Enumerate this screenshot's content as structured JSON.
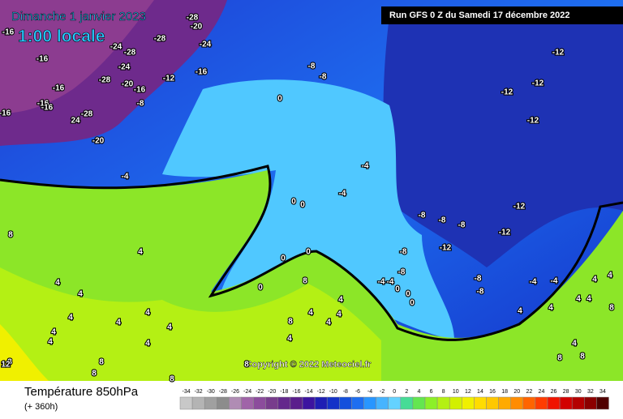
{
  "header": {
    "date": "Dimanche 1 janvier 2023",
    "time": "1:00 locale",
    "run": "Run GFS 0 Z du Samedi 17 décembre 2022",
    "copyright": "Copyright © 2022 Meteociel.fr"
  },
  "footer": {
    "title": "Température 850hPa",
    "subtitle": "(+ 360h)"
  },
  "legend": {
    "ticks": [
      -34,
      -32,
      -30,
      -28,
      -26,
      -24,
      -22,
      -20,
      -18,
      -16,
      -14,
      -12,
      -10,
      -8,
      -6,
      -4,
      -2,
      0,
      2,
      4,
      6,
      8,
      10,
      12,
      14,
      16,
      18,
      20,
      22,
      24,
      26,
      28,
      30,
      32,
      34
    ],
    "colors": [
      "#c8c8c8",
      "#b4b4b4",
      "#a0a0a0",
      "#8c8c8c",
      "#b08cb4",
      "#a064a8",
      "#8c4c9c",
      "#783c8c",
      "#64288c",
      "#5a1e8c",
      "#3c14a0",
      "#1e1eb4",
      "#1432c8",
      "#1450dc",
      "#1e6ef0",
      "#2896ff",
      "#46b4ff",
      "#64d2ff",
      "#46dc96",
      "#64e650",
      "#8cf028",
      "#b4f014",
      "#d2f000",
      "#f0f000",
      "#ffdc00",
      "#ffc800",
      "#ffaa00",
      "#ff8c00",
      "#ff6400",
      "#ff3c00",
      "#f01400",
      "#d20000",
      "#b40000",
      "#8c0000",
      "#500000"
    ]
  },
  "map": {
    "labels": [
      "-16",
      "-28",
      "-20",
      "-24",
      "-28",
      "-24",
      "-28",
      "-16",
      "-24",
      "-28",
      "-20",
      "-16",
      "-12",
      "-16",
      "-8",
      "-16",
      "-16",
      "-16",
      "-28",
      "24",
      "-16",
      "-20",
      "-4",
      "0",
      "-8",
      "-8",
      "-12",
      "-12",
      "-12",
      "-12",
      "-4",
      "-4",
      "0",
      "0",
      "-8",
      "-8",
      "-8",
      "-12",
      "-12",
      "-12",
      "-8",
      "-8",
      "-8",
      "-4",
      "-4",
      "-8",
      "-4",
      "-4",
      "0",
      "0",
      "0",
      "0",
      "0",
      "0",
      "4",
      "4",
      "8",
      "4",
      "8",
      "4",
      "4",
      "4",
      "4",
      "4",
      "8",
      "4",
      "4",
      "4",
      "4",
      "4",
      "4",
      "4",
      "8",
      "8",
      "8",
      "8",
      "8",
      "4",
      "4",
      "4",
      "4",
      "4",
      "8",
      "8",
      "8",
      "4",
      "4",
      "12"
    ]
  }
}
